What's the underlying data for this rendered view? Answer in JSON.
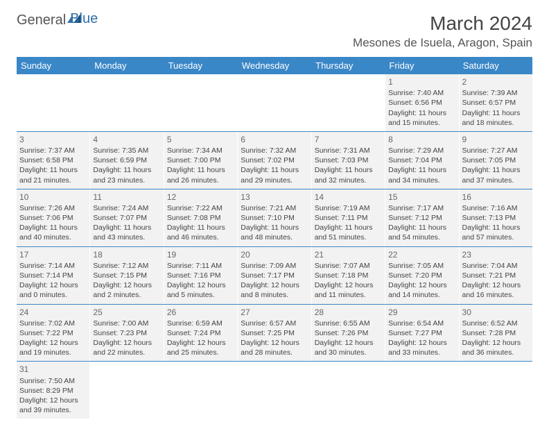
{
  "logo": {
    "general": "General",
    "blue": "Blue"
  },
  "title": "March 2024",
  "location": "Mesones de Isuela, Aragon, Spain",
  "colors": {
    "header_bg": "#3a87c8",
    "cell_bg": "#f2f2f2",
    "divider": "#3a87c8",
    "text": "#444444"
  },
  "dayNames": [
    "Sunday",
    "Monday",
    "Tuesday",
    "Wednesday",
    "Thursday",
    "Friday",
    "Saturday"
  ],
  "weeks": [
    [
      null,
      null,
      null,
      null,
      null,
      {
        "n": "1",
        "sr": "Sunrise: 7:40 AM",
        "ss": "Sunset: 6:56 PM",
        "dl1": "Daylight: 11 hours",
        "dl2": "and 15 minutes."
      },
      {
        "n": "2",
        "sr": "Sunrise: 7:39 AM",
        "ss": "Sunset: 6:57 PM",
        "dl1": "Daylight: 11 hours",
        "dl2": "and 18 minutes."
      }
    ],
    [
      {
        "n": "3",
        "sr": "Sunrise: 7:37 AM",
        "ss": "Sunset: 6:58 PM",
        "dl1": "Daylight: 11 hours",
        "dl2": "and 21 minutes."
      },
      {
        "n": "4",
        "sr": "Sunrise: 7:35 AM",
        "ss": "Sunset: 6:59 PM",
        "dl1": "Daylight: 11 hours",
        "dl2": "and 23 minutes."
      },
      {
        "n": "5",
        "sr": "Sunrise: 7:34 AM",
        "ss": "Sunset: 7:00 PM",
        "dl1": "Daylight: 11 hours",
        "dl2": "and 26 minutes."
      },
      {
        "n": "6",
        "sr": "Sunrise: 7:32 AM",
        "ss": "Sunset: 7:02 PM",
        "dl1": "Daylight: 11 hours",
        "dl2": "and 29 minutes."
      },
      {
        "n": "7",
        "sr": "Sunrise: 7:31 AM",
        "ss": "Sunset: 7:03 PM",
        "dl1": "Daylight: 11 hours",
        "dl2": "and 32 minutes."
      },
      {
        "n": "8",
        "sr": "Sunrise: 7:29 AM",
        "ss": "Sunset: 7:04 PM",
        "dl1": "Daylight: 11 hours",
        "dl2": "and 34 minutes."
      },
      {
        "n": "9",
        "sr": "Sunrise: 7:27 AM",
        "ss": "Sunset: 7:05 PM",
        "dl1": "Daylight: 11 hours",
        "dl2": "and 37 minutes."
      }
    ],
    [
      {
        "n": "10",
        "sr": "Sunrise: 7:26 AM",
        "ss": "Sunset: 7:06 PM",
        "dl1": "Daylight: 11 hours",
        "dl2": "and 40 minutes."
      },
      {
        "n": "11",
        "sr": "Sunrise: 7:24 AM",
        "ss": "Sunset: 7:07 PM",
        "dl1": "Daylight: 11 hours",
        "dl2": "and 43 minutes."
      },
      {
        "n": "12",
        "sr": "Sunrise: 7:22 AM",
        "ss": "Sunset: 7:08 PM",
        "dl1": "Daylight: 11 hours",
        "dl2": "and 46 minutes."
      },
      {
        "n": "13",
        "sr": "Sunrise: 7:21 AM",
        "ss": "Sunset: 7:10 PM",
        "dl1": "Daylight: 11 hours",
        "dl2": "and 48 minutes."
      },
      {
        "n": "14",
        "sr": "Sunrise: 7:19 AM",
        "ss": "Sunset: 7:11 PM",
        "dl1": "Daylight: 11 hours",
        "dl2": "and 51 minutes."
      },
      {
        "n": "15",
        "sr": "Sunrise: 7:17 AM",
        "ss": "Sunset: 7:12 PM",
        "dl1": "Daylight: 11 hours",
        "dl2": "and 54 minutes."
      },
      {
        "n": "16",
        "sr": "Sunrise: 7:16 AM",
        "ss": "Sunset: 7:13 PM",
        "dl1": "Daylight: 11 hours",
        "dl2": "and 57 minutes."
      }
    ],
    [
      {
        "n": "17",
        "sr": "Sunrise: 7:14 AM",
        "ss": "Sunset: 7:14 PM",
        "dl1": "Daylight: 12 hours",
        "dl2": "and 0 minutes."
      },
      {
        "n": "18",
        "sr": "Sunrise: 7:12 AM",
        "ss": "Sunset: 7:15 PM",
        "dl1": "Daylight: 12 hours",
        "dl2": "and 2 minutes."
      },
      {
        "n": "19",
        "sr": "Sunrise: 7:11 AM",
        "ss": "Sunset: 7:16 PM",
        "dl1": "Daylight: 12 hours",
        "dl2": "and 5 minutes."
      },
      {
        "n": "20",
        "sr": "Sunrise: 7:09 AM",
        "ss": "Sunset: 7:17 PM",
        "dl1": "Daylight: 12 hours",
        "dl2": "and 8 minutes."
      },
      {
        "n": "21",
        "sr": "Sunrise: 7:07 AM",
        "ss": "Sunset: 7:18 PM",
        "dl1": "Daylight: 12 hours",
        "dl2": "and 11 minutes."
      },
      {
        "n": "22",
        "sr": "Sunrise: 7:05 AM",
        "ss": "Sunset: 7:20 PM",
        "dl1": "Daylight: 12 hours",
        "dl2": "and 14 minutes."
      },
      {
        "n": "23",
        "sr": "Sunrise: 7:04 AM",
        "ss": "Sunset: 7:21 PM",
        "dl1": "Daylight: 12 hours",
        "dl2": "and 16 minutes."
      }
    ],
    [
      {
        "n": "24",
        "sr": "Sunrise: 7:02 AM",
        "ss": "Sunset: 7:22 PM",
        "dl1": "Daylight: 12 hours",
        "dl2": "and 19 minutes."
      },
      {
        "n": "25",
        "sr": "Sunrise: 7:00 AM",
        "ss": "Sunset: 7:23 PM",
        "dl1": "Daylight: 12 hours",
        "dl2": "and 22 minutes."
      },
      {
        "n": "26",
        "sr": "Sunrise: 6:59 AM",
        "ss": "Sunset: 7:24 PM",
        "dl1": "Daylight: 12 hours",
        "dl2": "and 25 minutes."
      },
      {
        "n": "27",
        "sr": "Sunrise: 6:57 AM",
        "ss": "Sunset: 7:25 PM",
        "dl1": "Daylight: 12 hours",
        "dl2": "and 28 minutes."
      },
      {
        "n": "28",
        "sr": "Sunrise: 6:55 AM",
        "ss": "Sunset: 7:26 PM",
        "dl1": "Daylight: 12 hours",
        "dl2": "and 30 minutes."
      },
      {
        "n": "29",
        "sr": "Sunrise: 6:54 AM",
        "ss": "Sunset: 7:27 PM",
        "dl1": "Daylight: 12 hours",
        "dl2": "and 33 minutes."
      },
      {
        "n": "30",
        "sr": "Sunrise: 6:52 AM",
        "ss": "Sunset: 7:28 PM",
        "dl1": "Daylight: 12 hours",
        "dl2": "and 36 minutes."
      }
    ],
    [
      {
        "n": "31",
        "sr": "Sunrise: 7:50 AM",
        "ss": "Sunset: 8:29 PM",
        "dl1": "Daylight: 12 hours",
        "dl2": "and 39 minutes."
      },
      null,
      null,
      null,
      null,
      null,
      null
    ]
  ]
}
